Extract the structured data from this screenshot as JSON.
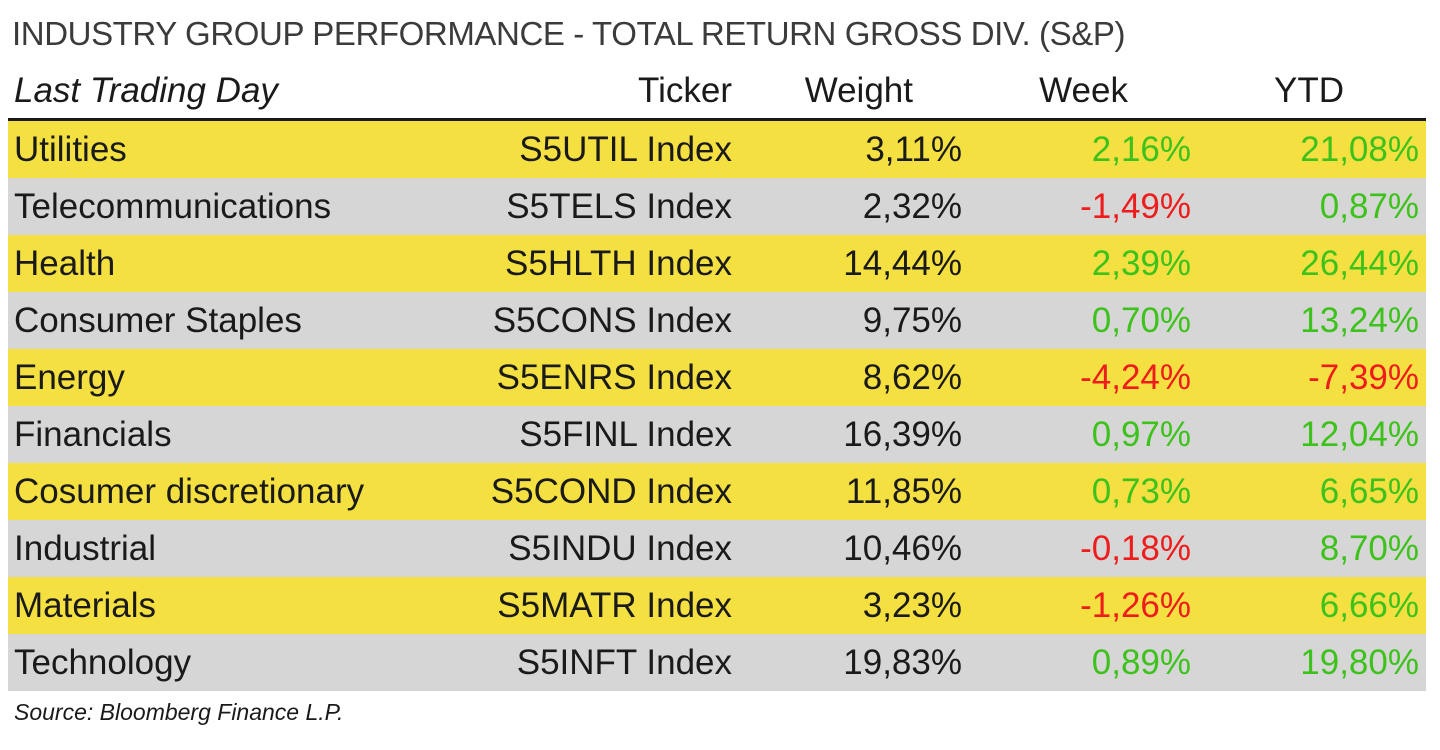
{
  "title": "INDUSTRY GROUP PERFORMANCE - TOTAL RETURN GROSS DIV. (S&P)",
  "source": "Source: Bloomberg Finance L.P.",
  "colors": {
    "row_odd": "#f5e042",
    "row_even": "#d6d6d6",
    "positive": "#3dc21b",
    "negative": "#ee1c1c"
  },
  "chart_data": {
    "type": "table",
    "title": "INDUSTRY GROUP PERFORMANCE - TOTAL RETURN GROSS DIV. (S&P)",
    "columns": [
      "Last Trading Day",
      "Ticker",
      "Weight",
      "Week",
      "YTD"
    ],
    "rows": [
      {
        "name": "Utilities",
        "ticker": "S5UTIL Index",
        "weight": "3,11%",
        "week": "2,16%",
        "ytd": "21,08%"
      },
      {
        "name": "Telecommunications",
        "ticker": "S5TELS Index",
        "weight": "2,32%",
        "week": "-1,49%",
        "ytd": "0,87%"
      },
      {
        "name": "Health",
        "ticker": "S5HLTH Index",
        "weight": "14,44%",
        "week": "2,39%",
        "ytd": "26,44%"
      },
      {
        "name": "Consumer Staples",
        "ticker": "S5CONS Index",
        "weight": "9,75%",
        "week": "0,70%",
        "ytd": "13,24%"
      },
      {
        "name": "Energy",
        "ticker": "S5ENRS Index",
        "weight": "8,62%",
        "week": "-4,24%",
        "ytd": "-7,39%"
      },
      {
        "name": "Financials",
        "ticker": "S5FINL Index",
        "weight": "16,39%",
        "week": "0,97%",
        "ytd": "12,04%"
      },
      {
        "name": "Cosumer discretionary",
        "ticker": "S5COND Index",
        "weight": "11,85%",
        "week": "0,73%",
        "ytd": "6,65%"
      },
      {
        "name": "Industrial",
        "ticker": "S5INDU Index",
        "weight": "10,46%",
        "week": "-0,18%",
        "ytd": "8,70%"
      },
      {
        "name": "Materials",
        "ticker": "S5MATR Index",
        "weight": "3,23%",
        "week": "-1,26%",
        "ytd": "6,66%"
      },
      {
        "name": "Technology",
        "ticker": "S5INFT Index",
        "weight": "19,83%",
        "week": "0,89%",
        "ytd": "19,80%"
      }
    ]
  }
}
